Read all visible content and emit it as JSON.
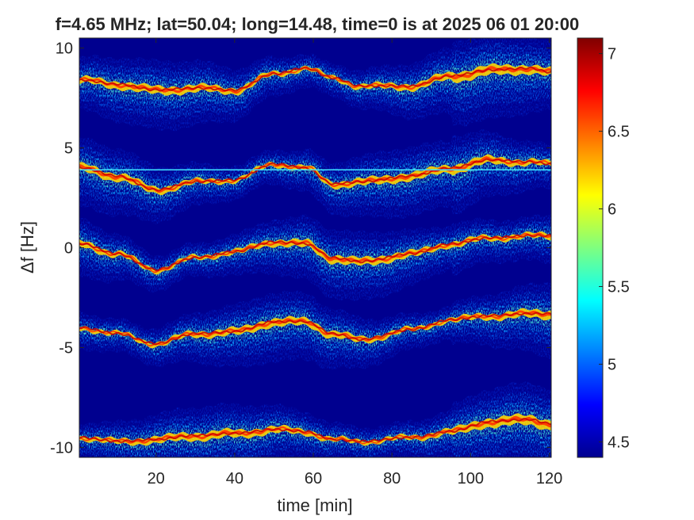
{
  "chart_data": {
    "type": "heatmap",
    "title": "f=4.65 MHz;  lat=50.04; long=14.48, time=0 is at 2025 06 01 20:00",
    "xlabel": "time [min]",
    "ylabel": "Δf [Hz]",
    "xlim": [
      0.5,
      120.5
    ],
    "ylim": [
      -10.5,
      10.5
    ],
    "xticks": [
      20,
      40,
      60,
      80,
      100,
      120
    ],
    "xtick_labels": [
      "20",
      "40",
      "60",
      "80",
      "100",
      "120"
    ],
    "yticks": [
      10,
      5,
      0,
      -5,
      -10
    ],
    "ytick_labels": [
      "10",
      "5",
      "0",
      "-5",
      "-10"
    ],
    "colorbar": {
      "range": [
        4.4,
        7.1
      ],
      "ticks": [
        7,
        6.5,
        6,
        5.5,
        5,
        4.5
      ],
      "tick_labels": [
        "7",
        "6.5",
        "6",
        "5.5",
        "5",
        "4.5"
      ],
      "colormap": "jet"
    },
    "background_color": "#00008f",
    "traces": [
      {
        "points": [
          [
            1,
            8.4
          ],
          [
            10,
            8.2
          ],
          [
            20,
            7.9
          ],
          [
            30,
            8.0
          ],
          [
            40,
            7.9
          ],
          [
            50,
            8.7
          ],
          [
            58,
            9.0
          ],
          [
            65,
            8.5
          ],
          [
            72,
            8.1
          ],
          [
            85,
            8.1
          ],
          [
            95,
            8.6
          ],
          [
            105,
            8.9
          ],
          [
            115,
            9.0
          ],
          [
            120,
            8.8
          ]
        ]
      },
      {
        "points": [
          [
            1,
            4.0
          ],
          [
            10,
            3.6
          ],
          [
            20,
            2.9
          ],
          [
            30,
            3.3
          ],
          [
            40,
            3.4
          ],
          [
            50,
            4.2
          ],
          [
            58,
            4.0
          ],
          [
            65,
            3.2
          ],
          [
            72,
            3.3
          ],
          [
            85,
            3.6
          ],
          [
            95,
            4.0
          ],
          [
            105,
            4.4
          ],
          [
            115,
            4.3
          ],
          [
            120,
            4.2
          ]
        ]
      },
      {
        "points": [
          [
            1,
            0.2
          ],
          [
            10,
            -0.3
          ],
          [
            20,
            -1.1
          ],
          [
            30,
            -0.5
          ],
          [
            40,
            -0.2
          ],
          [
            50,
            0.3
          ],
          [
            58,
            0.2
          ],
          [
            65,
            -0.5
          ],
          [
            72,
            -0.7
          ],
          [
            85,
            -0.3
          ],
          [
            95,
            0.2
          ],
          [
            105,
            0.5
          ],
          [
            115,
            0.6
          ],
          [
            120,
            0.6
          ]
        ]
      },
      {
        "points": [
          [
            1,
            -4.0
          ],
          [
            10,
            -4.3
          ],
          [
            20,
            -4.8
          ],
          [
            30,
            -4.3
          ],
          [
            40,
            -4.2
          ],
          [
            50,
            -3.7
          ],
          [
            58,
            -3.7
          ],
          [
            65,
            -4.3
          ],
          [
            72,
            -4.6
          ],
          [
            85,
            -4.1
          ],
          [
            95,
            -3.6
          ],
          [
            105,
            -3.4
          ],
          [
            115,
            -3.3
          ],
          [
            120,
            -3.3
          ]
        ]
      },
      {
        "points": [
          [
            1,
            -9.5
          ],
          [
            10,
            -9.7
          ],
          [
            20,
            -9.6
          ],
          [
            30,
            -9.4
          ],
          [
            40,
            -9.3
          ],
          [
            50,
            -9.1
          ],
          [
            58,
            -9.2
          ],
          [
            65,
            -9.6
          ],
          [
            72,
            -9.7
          ],
          [
            85,
            -9.5
          ],
          [
            95,
            -9.2
          ],
          [
            105,
            -8.7
          ],
          [
            115,
            -8.6
          ],
          [
            120,
            -8.8
          ]
        ]
      }
    ],
    "horizontal_line": {
      "y": 3.9,
      "color": "#41e6ff"
    }
  }
}
